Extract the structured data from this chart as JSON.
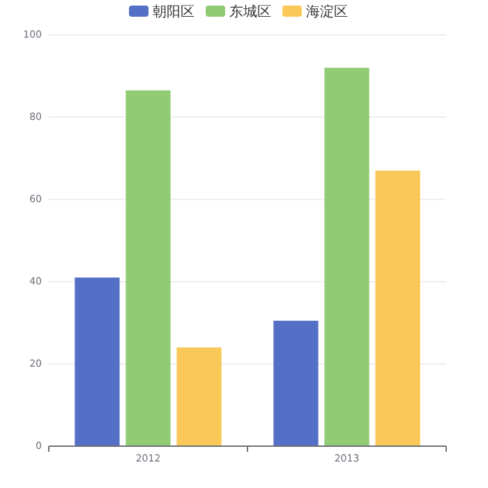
{
  "chart_data": {
    "type": "bar",
    "categories": [
      "2012",
      "2013"
    ],
    "series": [
      {
        "name": "朝阳区",
        "color": "#5470c6",
        "values": [
          41,
          30.5
        ]
      },
      {
        "name": "东城区",
        "color": "#91cc75",
        "values": [
          86.5,
          92
        ]
      },
      {
        "name": "海淀区",
        "color": "#fac858",
        "values": [
          24,
          67
        ]
      }
    ],
    "ylim": [
      0,
      100
    ],
    "yticks": [
      0,
      20,
      40,
      60,
      80,
      100
    ],
    "grid": "y",
    "legend": "top"
  }
}
